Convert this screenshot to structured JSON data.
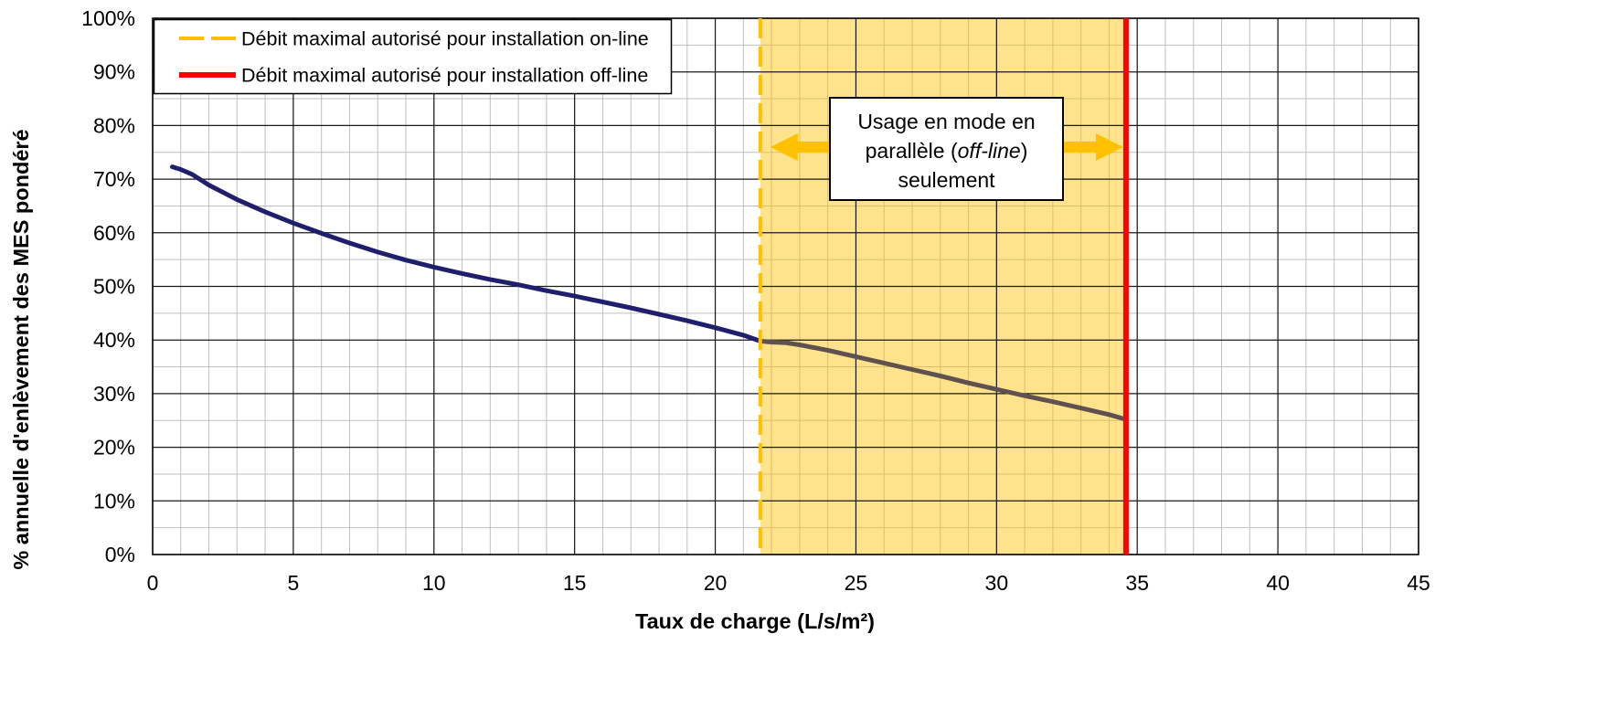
{
  "chart_data": {
    "type": "line",
    "xlabel": "Taux de charge (L/s/m²)",
    "ylabel": "% annuelle d'enlèvement des MES pondéré",
    "xlim": [
      0,
      45
    ],
    "ylim": [
      0,
      100
    ],
    "x_ticks": [
      {
        "value": 0,
        "label": "0"
      },
      {
        "value": 5,
        "label": "5"
      },
      {
        "value": 10,
        "label": "10"
      },
      {
        "value": 15,
        "label": "15"
      },
      {
        "value": 20,
        "label": "20"
      },
      {
        "value": 25,
        "label": "25"
      },
      {
        "value": 30,
        "label": "30"
      },
      {
        "value": 35,
        "label": "35"
      },
      {
        "value": 40,
        "label": "40"
      },
      {
        "value": 45,
        "label": "45"
      }
    ],
    "y_ticks": [
      {
        "value": 0,
        "label": "0%"
      },
      {
        "value": 10,
        "label": "10%"
      },
      {
        "value": 20,
        "label": "20%"
      },
      {
        "value": 30,
        "label": "30%"
      },
      {
        "value": 40,
        "label": "40%"
      },
      {
        "value": 50,
        "label": "50%"
      },
      {
        "value": 60,
        "label": "60%"
      },
      {
        "value": 70,
        "label": "70%"
      },
      {
        "value": 80,
        "label": "80%"
      },
      {
        "value": 90,
        "label": "90%"
      },
      {
        "value": 100,
        "label": "100%"
      }
    ],
    "grid": true,
    "minor_grid": {
      "x_step": 1,
      "y_step": 5
    },
    "legend": "top-left",
    "series": [
      {
        "color": "#1F1F6E",
        "x": [
          0.7,
          1.0,
          1.4,
          2.0,
          3.0,
          4.0,
          5.0,
          6.0,
          7.0,
          8.0,
          9.0,
          10.0,
          11.0,
          12.0,
          13.0,
          14.0,
          15.0,
          16.0,
          17.0,
          18.0,
          19.0,
          20.0,
          21.0,
          21.6
        ],
        "y": [
          72.3,
          71.8,
          70.9,
          68.9,
          66.2,
          63.9,
          61.8,
          59.9,
          58.1,
          56.4,
          54.9,
          53.6,
          52.4,
          51.3,
          50.3,
          49.2,
          48.2,
          47.1,
          46.0,
          44.8,
          43.6,
          42.3,
          40.9,
          39.8
        ]
      },
      {
        "color": "#5F514F",
        "x": [
          21.6,
          22.0,
          22.5,
          23.0,
          24.0,
          25.0,
          26.0,
          27.0,
          28.0,
          29.0,
          30.0,
          31.0,
          32.0,
          33.0,
          34.0,
          34.6
        ],
        "y": [
          39.8,
          39.6,
          39.5,
          39.1,
          38.1,
          36.9,
          35.7,
          34.5,
          33.3,
          32.0,
          30.8,
          29.6,
          28.5,
          27.3,
          26.1,
          25.2
        ]
      }
    ],
    "reference_lines": [
      {
        "name": "Débit maximal autorisé pour installation on-line",
        "x": 21.6,
        "color": "#FFC000",
        "style": "dashed"
      },
      {
        "name": "Débit maximal autorisé pour installation off-line",
        "x": 34.6,
        "color": "#FF0000",
        "style": "solid"
      }
    ],
    "shaded_region": {
      "x_from": 21.6,
      "x_to": 34.6,
      "color": "#FFC000"
    },
    "annotation": {
      "line1": "Usage en mode en",
      "line2_pre": "parallèle (",
      "line2_italic": "off-line",
      "line2_post": ")",
      "line3": "seulement",
      "arrow_color": "#FFC000"
    }
  }
}
